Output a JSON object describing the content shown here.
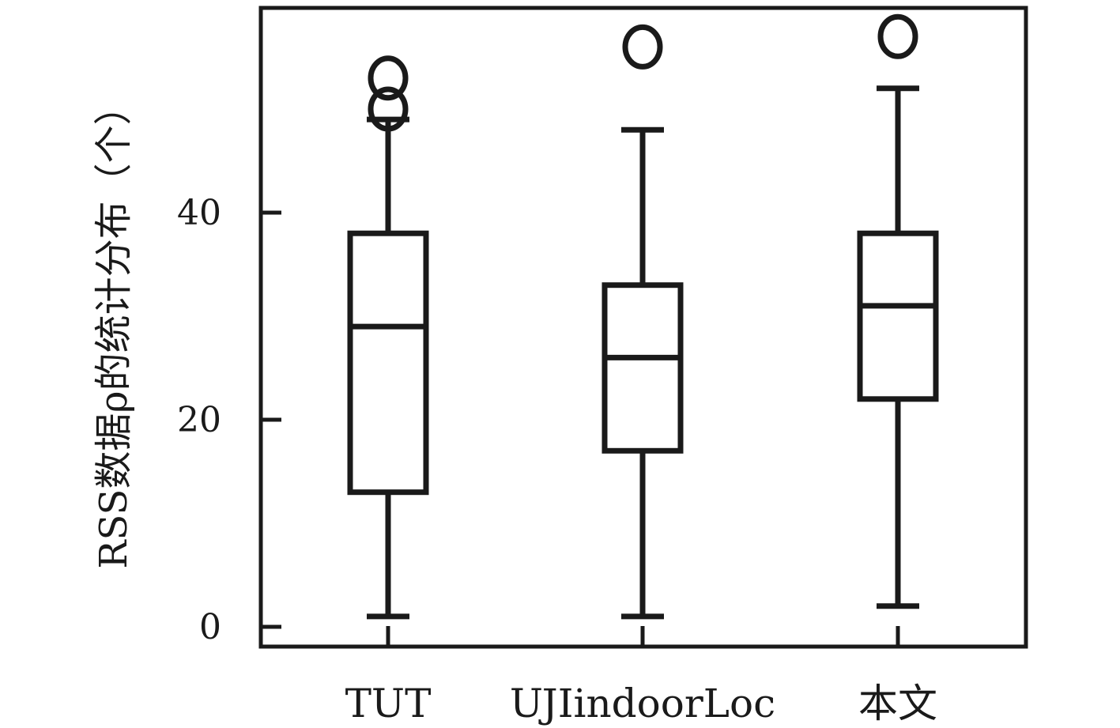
{
  "chart_data": {
    "type": "box",
    "ylabel": "RSS数据ρ的统计分布（个）",
    "xlabel": "",
    "ylim": [
      -2,
      59
    ],
    "yticks": [
      0,
      20,
      40
    ],
    "grid": false,
    "categories": [
      "TUT",
      "UJIindoorLoc",
      "本文"
    ],
    "boxes": [
      {
        "category": "TUT",
        "whisker_low": 1,
        "q1": 13,
        "median": 29,
        "q3": 38,
        "whisker_high": 49,
        "outliers": [
          50,
          53
        ]
      },
      {
        "category": "UJIindoorLoc",
        "whisker_low": 1,
        "q1": 17,
        "median": 26,
        "q3": 33,
        "whisker_high": 48,
        "outliers": [
          56
        ]
      },
      {
        "category": "本文",
        "whisker_low": 2,
        "q1": 22,
        "median": 31,
        "q3": 38,
        "whisker_high": 52,
        "outliers": [
          57
        ]
      }
    ],
    "colors": {
      "stroke": "#1a1a1a"
    }
  }
}
